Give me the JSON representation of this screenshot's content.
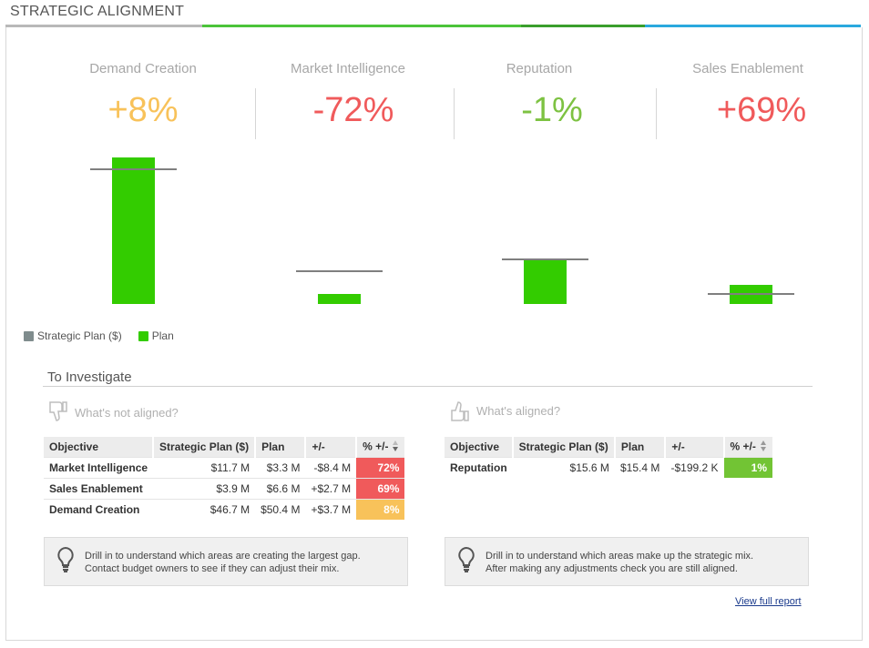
{
  "header": {
    "title": "STRATEGIC ALIGNMENT"
  },
  "colors": {
    "bar": "#33cc00",
    "ref_line": "#7f7f7f",
    "negative": "#f05a5b",
    "warning": "#f5c14b",
    "positive": "#7dc242",
    "aligned": "#72c434"
  },
  "metrics": [
    {
      "name": "Demand Creation",
      "value": "+8%",
      "color": "#f8c25a"
    },
    {
      "name": "Market Intelligence",
      "value": "-72%",
      "color": "#f05a5b"
    },
    {
      "name": "Reputation",
      "value": "-1%",
      "color": "#7dc242"
    },
    {
      "name": "Sales Enablement",
      "value": "+69%",
      "color": "#f05a5b"
    }
  ],
  "chart_data": {
    "type": "bar",
    "categories": [
      "Demand Creation",
      "Market Intelligence",
      "Reputation",
      "Sales Enablement"
    ],
    "series": [
      {
        "name": "Strategic Plan ($)",
        "values": [
          46.7,
          11.7,
          15.6,
          3.9
        ],
        "unit": "M"
      },
      {
        "name": "Plan",
        "values": [
          50.4,
          3.3,
          15.4,
          6.6
        ],
        "unit": "M"
      }
    ],
    "legend": [
      "Strategic Plan ($)",
      "Plan"
    ],
    "ylim": [
      0,
      50.4
    ]
  },
  "legend": {
    "strategic_label": "Strategic Plan ($)",
    "plan_label": "Plan",
    "strategic_color": "#7f8c8d",
    "plan_color": "#33cc00"
  },
  "investigate": {
    "title": "To Investigate",
    "not_aligned": {
      "label": "What's not aligned?",
      "headers": [
        "Objective",
        "Strategic Plan ($)",
        "Plan",
        "+/-",
        "% +/-"
      ],
      "rows": [
        {
          "objective": "Market Intelligence",
          "strategic": "$11.7 M",
          "plan": "$3.3 M",
          "diff": "-$8.4 M",
          "pct": "72%",
          "pct_color": "#f05a5b"
        },
        {
          "objective": "Sales Enablement",
          "strategic": "$3.9 M",
          "plan": "$6.6 M",
          "diff": "+$2.7 M",
          "pct": "69%",
          "pct_color": "#f05a5b"
        },
        {
          "objective": "Demand Creation",
          "strategic": "$46.7 M",
          "plan": "$50.4 M",
          "diff": "+$3.7 M",
          "pct": "8%",
          "pct_color": "#f8c25a"
        }
      ],
      "tip_line1": "Drill in to understand which areas are creating the largest gap.",
      "tip_line2": "Contact budget owners to see if they can adjust their mix."
    },
    "aligned": {
      "label": "What's aligned?",
      "headers": [
        "Objective",
        "Strategic Plan ($)",
        "Plan",
        "+/-",
        "% +/-"
      ],
      "rows": [
        {
          "objective": "Reputation",
          "strategic": "$15.6 M",
          "plan": "$15.4 M",
          "diff": "-$199.2 K",
          "pct": "1%",
          "pct_color": "#72c434"
        }
      ],
      "tip_line1": "Drill in to understand which areas make up the strategic mix.",
      "tip_line2": "After making any adjustments check you are still aligned."
    },
    "view_full_report": "View full report"
  }
}
